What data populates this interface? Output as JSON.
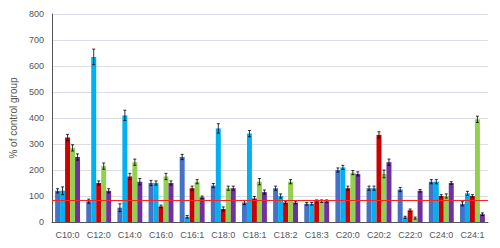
{
  "chart_data": {
    "type": "bar",
    "categories": [
      "C10:0",
      "C12:0",
      "C14:0",
      "C16:0",
      "C16:1",
      "C18:0",
      "C18:1",
      "C18:2",
      "C18:3",
      "C20:0",
      "C20:2",
      "C22:0",
      "C24:0",
      "C24:1"
    ],
    "series": [
      {
        "color": "#4472c4",
        "values": [
          120,
          80,
          55,
          150,
          250,
          140,
          75,
          130,
          70,
          200,
          130,
          125,
          155,
          70
        ],
        "errors": [
          8,
          8,
          15,
          10,
          10,
          8,
          8,
          8,
          5,
          8,
          8,
          8,
          8,
          8
        ]
      },
      {
        "color": "#00b0f0",
        "values": [
          120,
          635,
          410,
          150,
          20,
          360,
          340,
          100,
          70,
          210,
          130,
          18,
          155,
          110
        ],
        "errors": [
          15,
          30,
          20,
          8,
          5,
          18,
          12,
          8,
          5,
          8,
          8,
          4,
          8,
          8
        ]
      },
      {
        "color": "#cc0000",
        "values": [
          325,
          150,
          175,
          60,
          130,
          50,
          90,
          75,
          80,
          130,
          335,
          45,
          100,
          100
        ],
        "errors": [
          12,
          8,
          12,
          5,
          8,
          8,
          8,
          5,
          5,
          8,
          12,
          5,
          5,
          5
        ]
      },
      {
        "color": "#92d050",
        "values": [
          285,
          215,
          230,
          175,
          155,
          130,
          155,
          155,
          80,
          190,
          185,
          15,
          100,
          395
        ],
        "errors": [
          12,
          12,
          12,
          12,
          8,
          8,
          12,
          8,
          5,
          8,
          15,
          4,
          8,
          12
        ]
      },
      {
        "color": "#7030a0",
        "values": [
          250,
          120,
          155,
          150,
          95,
          130,
          115,
          75,
          80,
          185,
          230,
          120,
          150,
          30
        ],
        "errors": [
          12,
          8,
          12,
          8,
          5,
          8,
          8,
          5,
          5,
          8,
          12,
          5,
          5,
          5
        ]
      }
    ],
    "reference_lines": [
      {
        "value": 83,
        "color": "#ff2222"
      }
    ],
    "ylabel": "% of control group",
    "ylim": [
      0,
      800
    ],
    "yticks": [
      0,
      100,
      200,
      300,
      400,
      500,
      600,
      700,
      800
    ],
    "grid": true
  }
}
